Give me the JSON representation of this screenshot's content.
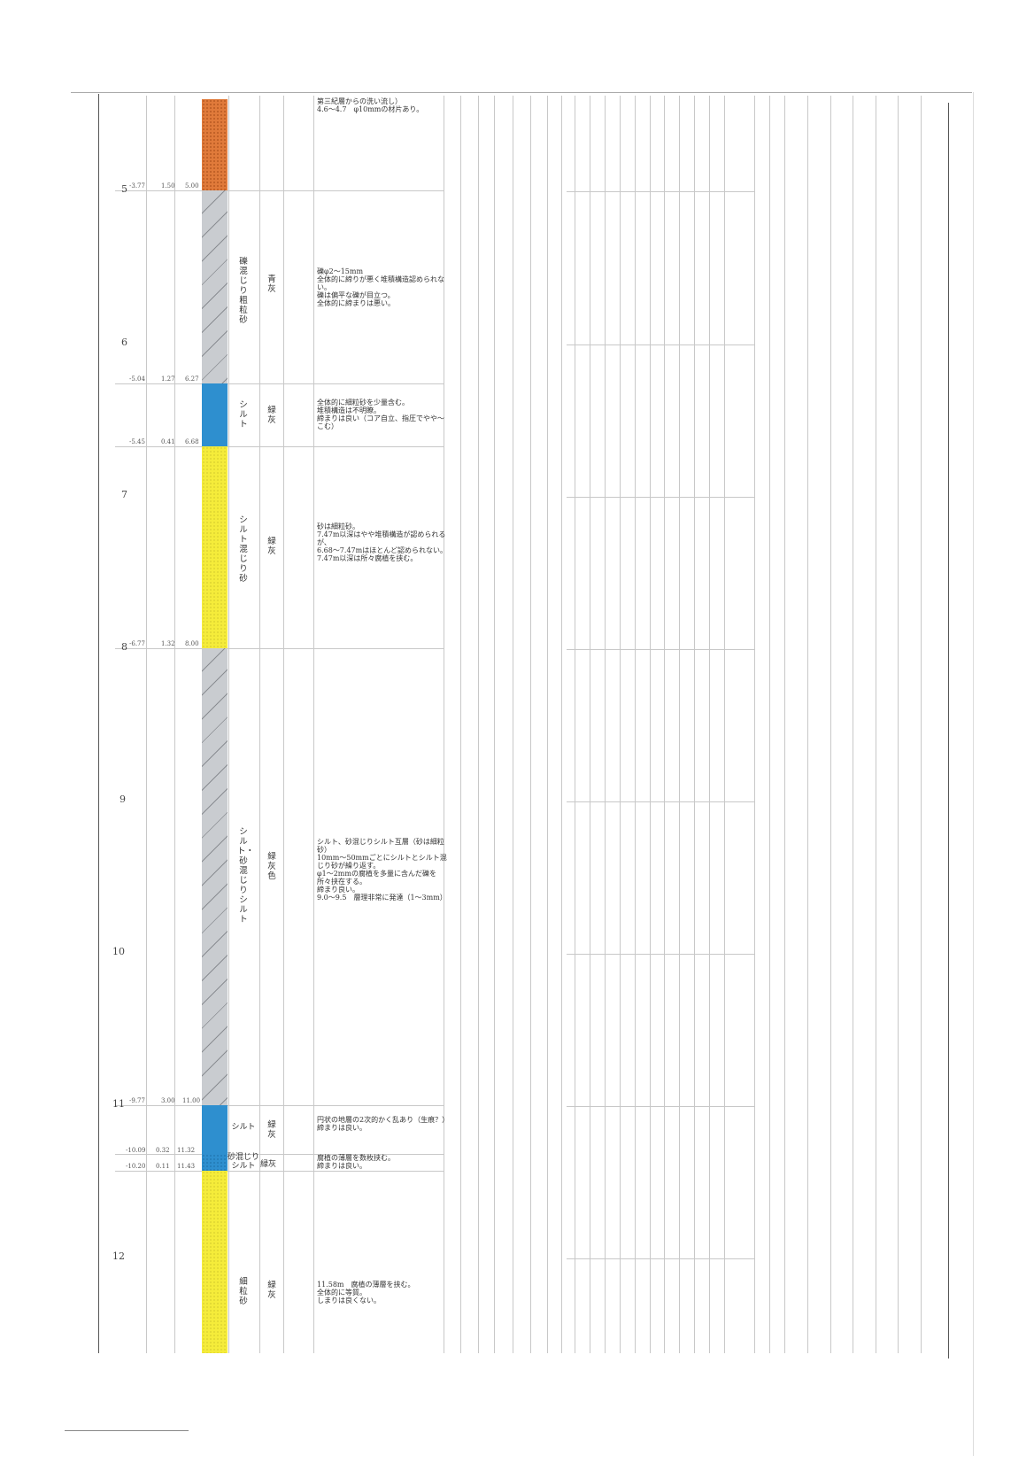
{
  "depth_marks": [
    {
      "label": "5",
      "top": 0
    },
    {
      "label": "6",
      "top": 0
    },
    {
      "label": "7",
      "top": 0
    },
    {
      "label": "8",
      "top": 0
    },
    {
      "label": "9",
      "top": 0
    },
    {
      "label": "10",
      "top": 0
    },
    {
      "label": "11",
      "top": 0
    },
    {
      "label": "12",
      "top": 0
    }
  ],
  "layers": [
    {
      "id": "gravel-top",
      "soil": "",
      "color": "",
      "description": "第三紀層からの洗い流し）\n4.6〜4.7　φ10mmの材片あり。",
      "fill": "#e07a3a",
      "elev": "-3.77",
      "thick": "1.50",
      "depth": "5.00"
    },
    {
      "id": "gravelly-coarse-sand",
      "soil": "礫混じり粗粒砂",
      "color": "青灰",
      "description": "礫φ2〜15mm\n全体的に締りが悪く堆積構造認められない。\n礫は偏平な礫が目立つ。\n全体的に締まりは悪い。",
      "fill": "#c9ccd0",
      "elev": "-5.04",
      "thick": "1.27",
      "depth": "6.27"
    },
    {
      "id": "silt-1",
      "soil": "シルト",
      "color": "緑灰",
      "description": "全体的に細粒砂を少量含む。\n堆積構造は不明瞭。\n締まりは良い（コア自立、指圧でやや〜こむ）",
      "fill": "#2e8fcf",
      "elev": "-5.45",
      "thick": "0.41",
      "depth": "6.68"
    },
    {
      "id": "silty-sand",
      "soil": "シルト混じり砂",
      "color": "緑灰",
      "description": "砂は細粒砂。\n7.47m以深はやや堆積構造が認められるが、\n6.68〜7.47mはほとんど認められない。\n7.47m以深は所々腐植を挟む。",
      "fill": "#f5ec3a",
      "elev": "-6.77",
      "thick": "1.32",
      "depth": "8.00"
    },
    {
      "id": "silt-sandy-silt",
      "soil": "シルト・砂混じりシルト",
      "color": "緑灰色",
      "description": "シルト、砂混じりシルト互層（砂は細粒砂）\n10mm〜50mmごとにシルトとシルト混じり砂が繰り返す。\nφ1〜2mmの腐植を多量に含んだ礫を所々挟在する。\n締まり良い。\n9.0〜9.5　層理非常に発達（1〜3mm）",
      "fill": "#c9ccd0",
      "elev": "-9.77",
      "thick": "3.00",
      "depth": "11.00"
    },
    {
      "id": "silt-2",
      "soil": "シルト",
      "color": "緑灰",
      "description": "円状の地層の2次的かく乱あり（生痕？）\n締まりは良い。",
      "fill": "#2e8fcf",
      "elev": "-10.09",
      "thick": "0.32",
      "depth": "11.32"
    },
    {
      "id": "sandy-silt",
      "soil": "砂混じりシルト",
      "color": "緑灰",
      "description": "腐植の薄層を数枚挟む。\n締まりは良い。",
      "fill": "#2e8fcf",
      "elev": "-10.20",
      "thick": "0.11",
      "depth": "11.43"
    },
    {
      "id": "fine-sand",
      "soil": "細粒砂",
      "color": "緑灰",
      "description": "11.58m　腐植の薄層を挟む。\n全体的に等質。\nしまりは良くない。",
      "fill": "#f5ec3a",
      "elev": "",
      "thick": "",
      "depth": ""
    }
  ]
}
